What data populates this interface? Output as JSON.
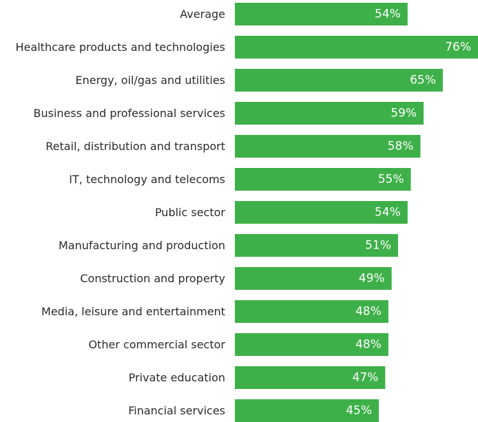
{
  "chart_data": {
    "type": "bar",
    "orientation": "horizontal",
    "title": "",
    "xlabel": "",
    "ylabel": "",
    "categories": [
      "Average",
      "Healthcare products and technologies",
      "Energy, oil/gas and utilities",
      "Business and professional services",
      "Retail, distribution and transport",
      "IT, technology and telecoms",
      "Public sector",
      "Manufacturing and production",
      "Construction and property",
      "Media, leisure and entertainment",
      "Other commercial sector",
      "Private education",
      "Financial services"
    ],
    "values": [
      54,
      76,
      65,
      59,
      58,
      55,
      54,
      51,
      49,
      48,
      48,
      47,
      45
    ],
    "value_labels": [
      "54%",
      "76%",
      "65%",
      "59%",
      "58%",
      "55%",
      "54%",
      "51%",
      "49%",
      "48%",
      "48%",
      "47%",
      "45%"
    ],
    "value_unit": "%",
    "xlim": [
      0,
      76
    ],
    "grid": false,
    "legend": "none",
    "bar_color": "#3eb049",
    "label_color": "#ffffff",
    "category_color": "#2b2b2b"
  }
}
